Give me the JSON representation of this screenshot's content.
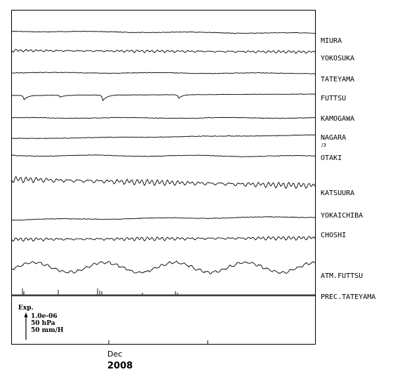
{
  "chart_data": {
    "type": "line",
    "title": "",
    "x_tick_labels": [
      "Dec"
    ],
    "x_year_label": "2008",
    "series": [
      {
        "name": "MIURA",
        "pattern": "drift",
        "amp": 0.6,
        "trend": 0.3
      },
      {
        "name": "YOKOSUKA",
        "pattern": "tidal",
        "amp": 1.5,
        "trend": 0.2
      },
      {
        "name": "TATEYAMA",
        "pattern": "drift",
        "amp": 0.5,
        "trend": 0.1
      },
      {
        "name": "FUTTSU",
        "pattern": "spikes",
        "amp": 0.5,
        "trend": -0.2
      },
      {
        "name": "KAMOGAWA",
        "pattern": "drift",
        "amp": 0.5,
        "trend": 0.0
      },
      {
        "name": "NAGARA",
        "sublabel": "/3",
        "pattern": "drift",
        "amp": 0.3,
        "trend": -0.5
      },
      {
        "name": "OTAKI",
        "pattern": "drift",
        "amp": 0.8,
        "trend": 0.1
      },
      {
        "name": "KATSUURA",
        "pattern": "tidal",
        "amp": 3.5,
        "trend": 0.9
      },
      {
        "name": "YOKAICHIBA",
        "pattern": "drift",
        "amp": 0.7,
        "trend": -0.4
      },
      {
        "name": "CHOSHI",
        "pattern": "tidal",
        "amp": 2.2,
        "trend": -0.2
      },
      {
        "name": "ATM.FUTTSU",
        "pattern": "pressure",
        "amp": 7.0,
        "trend": 0.0
      },
      {
        "name": "PREC.TATEYAMA",
        "pattern": "precip",
        "amp": 0.0,
        "trend": 0.0
      }
    ],
    "scale_legend": {
      "title": "Exp.",
      "lines": [
        "1.0e-06",
        "50 hPa",
        "50 mm/H"
      ]
    }
  }
}
